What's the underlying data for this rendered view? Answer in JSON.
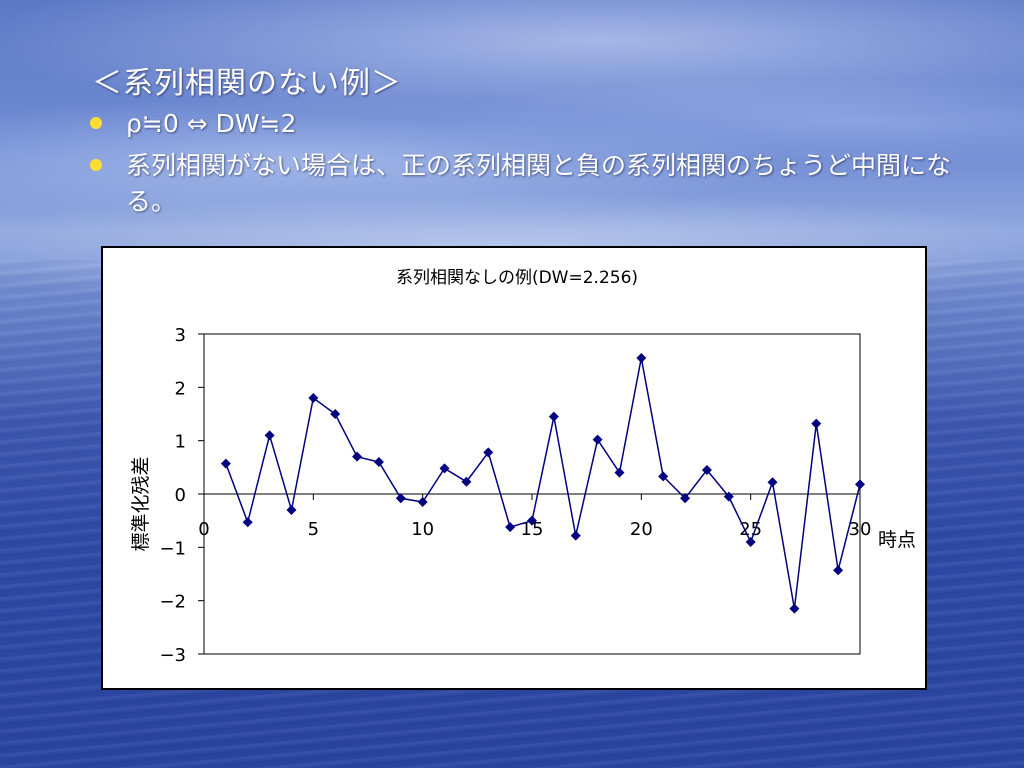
{
  "slide": {
    "title": "＜系列相関のない例＞",
    "bullets": [
      {
        "text": "ρ≒0 ⇔ DW≒2"
      },
      {
        "text": "系列相関がない場合は、正の系列相関と負の系列相関のちょうど中間になる。"
      }
    ],
    "bullet_color": "#ffdd33",
    "text_color": "#ffffff"
  },
  "chart_data": {
    "type": "line",
    "title": "系列相関なしの例(DW=2.256)",
    "xlabel": "時点",
    "ylabel": "標準化残差",
    "xlim": [
      0,
      30
    ],
    "ylim": [
      -3,
      3
    ],
    "x_ticks": [
      0,
      5,
      10,
      15,
      20,
      25,
      30
    ],
    "y_ticks": [
      3,
      2,
      1,
      0,
      -1,
      -2,
      -3
    ],
    "y_tick_labels": [
      "3",
      "2",
      "1",
      "0",
      "−1",
      "−2",
      "−3"
    ],
    "grid": false,
    "legend": "none",
    "line_color": "#000080",
    "marker": "diamond",
    "series": [
      {
        "x": [
          1,
          2,
          3,
          4,
          5,
          6,
          7,
          8,
          9,
          10,
          11,
          12,
          13,
          14,
          15,
          16,
          17,
          18,
          19,
          20,
          21,
          22,
          23,
          24,
          25,
          26,
          27,
          28,
          29,
          30
        ],
        "values": [
          0.57,
          -0.53,
          1.1,
          -0.3,
          1.8,
          1.5,
          0.7,
          0.6,
          -0.08,
          -0.15,
          0.48,
          0.23,
          0.78,
          -0.62,
          -0.5,
          1.45,
          -0.78,
          1.02,
          0.4,
          2.55,
          0.33,
          -0.08,
          0.45,
          -0.05,
          -0.9,
          0.22,
          -2.15,
          1.32,
          -1.43,
          0.18
        ]
      }
    ]
  }
}
